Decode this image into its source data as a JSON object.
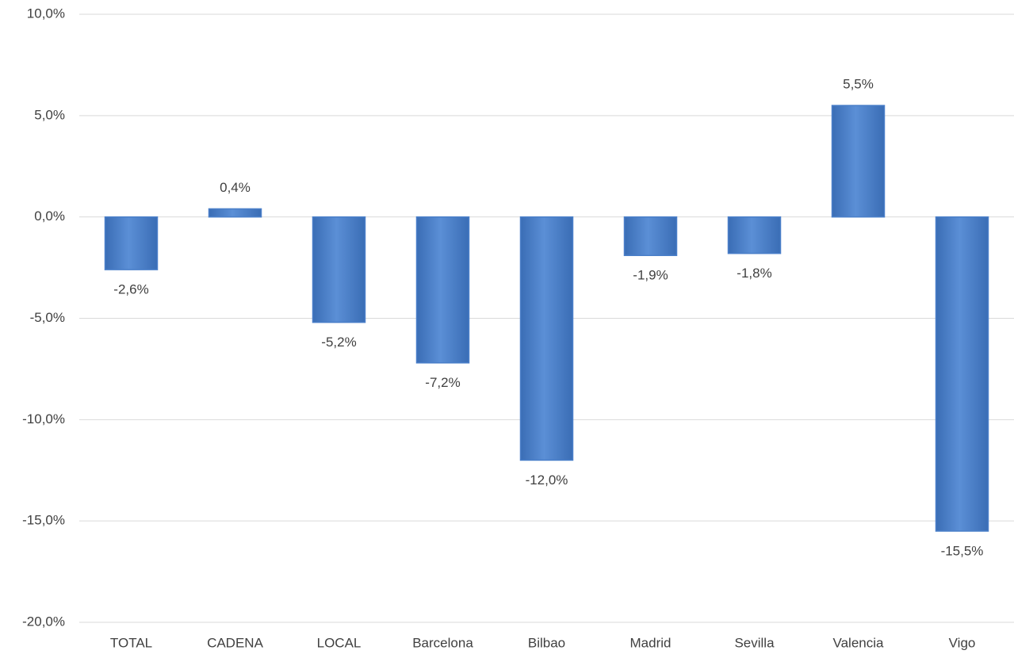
{
  "chart_data": {
    "type": "bar",
    "categories": [
      "TOTAL",
      "CADENA",
      "LOCAL",
      "Barcelona",
      "Bilbao",
      "Madrid",
      "Sevilla",
      "Valencia",
      "Vigo"
    ],
    "values": [
      -2.6,
      0.4,
      -5.2,
      -7.2,
      -12.0,
      -1.9,
      -1.8,
      5.5,
      -15.5
    ],
    "value_labels": [
      "-2,6%",
      "0,4%",
      "-5,2%",
      "-7,2%",
      "-12,0%",
      "-1,9%",
      "-1,8%",
      "5,5%",
      "-15,5%"
    ],
    "color": "#4a7fc9",
    "ylim": [
      -20,
      10
    ],
    "yticks": [
      {
        "value": -20,
        "label": "-20,0%"
      },
      {
        "value": -15,
        "label": "-15,0%"
      },
      {
        "value": -10,
        "label": "-10,0%"
      },
      {
        "value": -5,
        "label": "-5,0%"
      },
      {
        "value": 0,
        "label": "0,0%"
      },
      {
        "value": 5,
        "label": "5,0%"
      },
      {
        "value": 10,
        "label": "10,0%"
      }
    ],
    "grid": true
  }
}
